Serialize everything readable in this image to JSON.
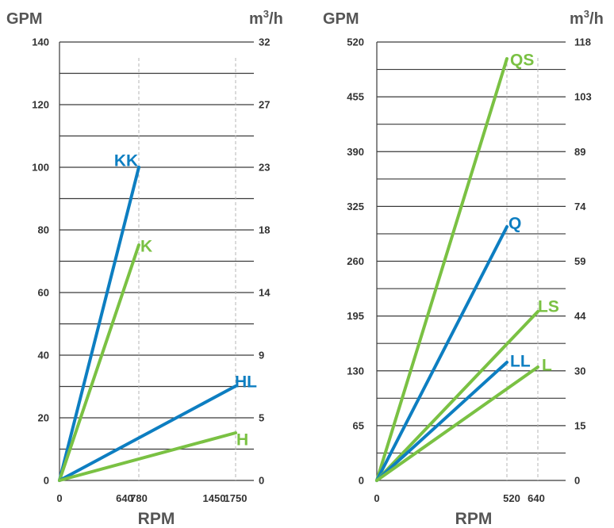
{
  "colors": {
    "blue": "#0d7ec1",
    "green": "#7ac143",
    "grid": "#3a3a3a",
    "dash": "#b5b5b5"
  },
  "chart_data": [
    {
      "type": "line",
      "left_unit": "GPM",
      "right_unit_base": "m",
      "right_unit_sup": "3",
      "right_unit_tail": "/h",
      "xlabel": "RPM",
      "ylim": [
        0,
        140
      ],
      "y_ticks": [
        "0",
        "20",
        "40",
        "60",
        "80",
        "100",
        "120",
        "140"
      ],
      "right_ticks": [
        "0",
        "5",
        "9",
        "14",
        "18",
        "23",
        "27",
        "32"
      ],
      "x_ticks": [
        "0",
        "640",
        "780",
        "1450",
        "1750"
      ],
      "series": [
        {
          "name": "KK",
          "color": "blue",
          "points": [
            [
              0,
              0
            ],
            [
              780,
              100
            ]
          ]
        },
        {
          "name": "K",
          "color": "green",
          "points": [
            [
              0,
              0
            ],
            [
              780,
              75
            ]
          ]
        },
        {
          "name": "HL",
          "color": "blue",
          "points": [
            [
              0,
              0
            ],
            [
              1750,
              30
            ]
          ]
        },
        {
          "name": "H",
          "color": "green",
          "points": [
            [
              0,
              0
            ],
            [
              1750,
              15
            ]
          ]
        }
      ],
      "dashed_x": [
        780,
        1750
      ]
    },
    {
      "type": "line",
      "left_unit": "GPM",
      "right_unit_base": "m",
      "right_unit_sup": "3",
      "right_unit_tail": "/h",
      "xlabel": "RPM",
      "ylim": [
        0,
        520
      ],
      "y_ticks": [
        "0",
        "65",
        "130",
        "195",
        "260",
        "325",
        "390",
        "455",
        "520"
      ],
      "right_ticks": [
        "0",
        "15",
        "30",
        "44",
        "59",
        "74",
        "89",
        "103",
        "118"
      ],
      "x_ticks": [
        "0",
        "520",
        "640"
      ],
      "series": [
        {
          "name": "QS",
          "color": "green",
          "points": [
            [
              0,
              0
            ],
            [
              520,
              495
            ]
          ]
        },
        {
          "name": "Q",
          "color": "blue",
          "points": [
            [
              0,
              0
            ],
            [
              520,
              300
            ]
          ]
        },
        {
          "name": "LS",
          "color": "green",
          "points": [
            [
              0,
              0
            ],
            [
              640,
              200
            ]
          ]
        },
        {
          "name": "LL",
          "color": "blue",
          "points": [
            [
              0,
              0
            ],
            [
              520,
              140
            ]
          ]
        },
        {
          "name": "L",
          "color": "green",
          "points": [
            [
              0,
              0
            ],
            [
              640,
              133
            ]
          ]
        }
      ],
      "dashed_x": [
        520,
        640
      ]
    }
  ]
}
